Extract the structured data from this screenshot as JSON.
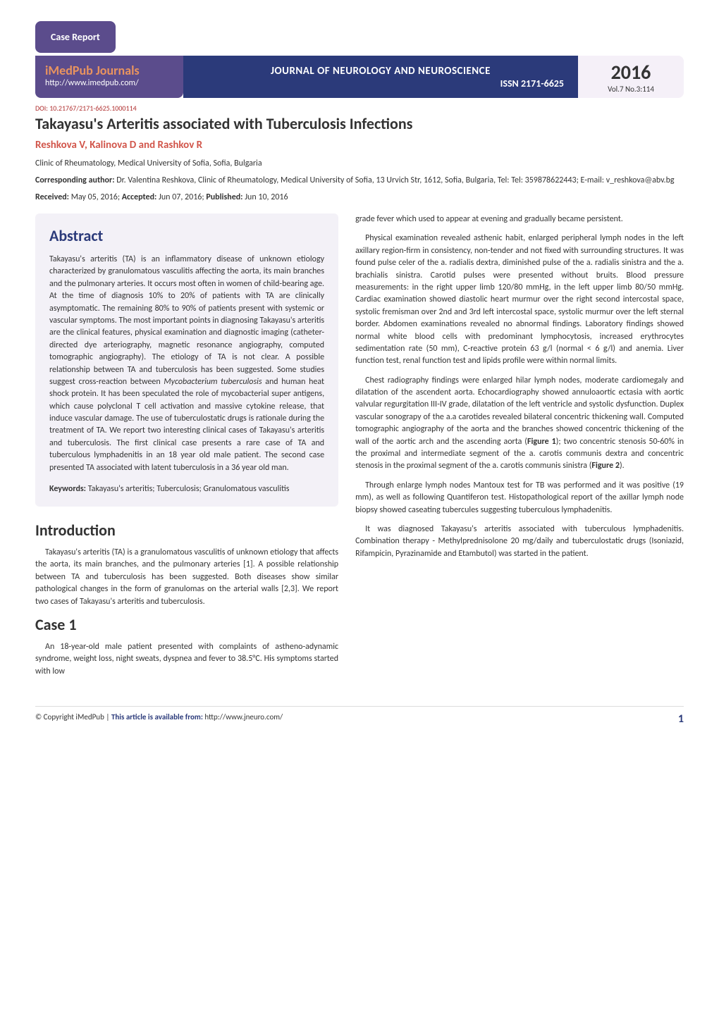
{
  "badge": "Case Report",
  "header": {
    "brand": "iMedPub Journals",
    "url": "http://www.imedpub.com/",
    "journal": "JOURNAL OF NEUROLOGY AND NEUROSCIENCE",
    "issn": "ISSN 2171-6625",
    "year": "2016",
    "volume": "Vol.7 No.3:114"
  },
  "doi": "DOI: 10.21767/2171-6625.1000114",
  "title": "Takayasu's Arteritis associated with Tuberculosis Infections",
  "authors": "Reshkova V, Kalinova D and Rashkov R",
  "affiliation": "Clinic of Rheumatology, Medical University of Sofia, Sofia, Bulgaria",
  "corresponding_label": "Corresponding author:",
  "corresponding_text": " Dr. Valentina Reshkova, Clinic of Rheumatology, Medical University of Sofia, 13 Urvich Str, 1612, Sofia, Bulgaria, Tel: Tel: 359878622443; E-mail: v_reshkova@abv.bg",
  "dates": {
    "received_label": "Received:",
    "received": " May 05, 2016; ",
    "accepted_label": "Accepted:",
    "accepted": " Jun 07, 2016; ",
    "published_label": "Published:",
    "published": " Jun 10, 2016"
  },
  "abstract_head": "Abstract",
  "abstract_p1": "Takayasu's arteritis (TA) is an inflammatory disease of unknown etiology characterized by granulomatous vasculitis affecting the aorta, its main branches and the pulmonary arteries. It occurs most often in women of child-bearing age. At the time of diagnosis 10% to 20% of patients with TA are clinically asymptomatic. The remaining 80% to 90% of patients present with systemic or vascular symptoms. The most important points in diagnosing Takayasu's arteritis are the clinical features, physical examination and diagnostic imaging (catheter-directed dye arteriography, magnetic resonance angiography, computed tomographic angiography). The etiology of TA is not clear. A possible relationship between TA and tuberculosis has been suggested. Some studies suggest cross-reaction between ",
  "abstract_italic": "Mycobacterium tuberculosis",
  "abstract_p1b": " and human heat shock protein. It has been speculated the role of mycobacterial super antigens, which cause polyclonal T cell activation and massive cytokine release, that induce vascular damage. The use of tuberculostatic drugs is rationale during the treatment of TA. We report two interesting clinical cases of Takayasu's arteritis and tuberculosis. The first clinical case presents a rare case of TA and tuberculous lymphadenitis in an 18 year old male patient. The second case presented TA associated with latent tuberculosis in a 36 year old man.",
  "keywords_label": "Keywords:",
  "keywords_text": " Takayasu's arteritis; Tuberculosis; Granulomatous vasculitis",
  "intro_head": "Introduction",
  "intro_p1": "Takayasu's arteritis (TA) is a granulomatous vasculitis of unknown etiology that affects the aorta, its main branches, and the pulmonary arteries [1]. A possible relationship between TA and tuberculosis has been suggested. Both diseases show similar pathological changes in the form of granulomas on the arterial walls [2,3]. We report two cases of Takayasu's arteritis and tuberculosis.",
  "case1_head": "Case 1",
  "case1_p1": "An 18-year-old male patient presented with complaints of astheno-adynamic syndrome, weight loss, night sweats, dyspnea and fever to 38.5°C. His symptoms started with low",
  "right_p1": "grade fever which used to appear at evening and gradually became persistent.",
  "right_p2": "Physical examination revealed asthenic habit, enlarged peripheral lymph nodes in the left axillary region-firm in consistency, non-tender and not fixed with surrounding structures. It was found pulse celer of the a. radialis dextra, diminished pulse of the a. radialis sinistra and the a. brachialis sinistra. Carotid pulses were presented without bruits. Blood pressure measurements: in the right upper limb 120/80 mmHg, in the left upper limb 80/50 mmHg. Cardiac examination showed diastolic heart murmur over the right second intercostal space, systolic fremisman over 2nd and 3rd left intercostal space, systolic murmur over the left sternal border. Abdomen examinations revealed no abnormal findings. Laboratory findings showed normal white blood cells with predominant lymphocytosis, increased erythrocytes sedimentation rate (50 mm), C-reactive protein 63 g/l (normal < 6 g/l) and anemia. Liver function test, renal function test and lipids profile were within normal limits.",
  "right_p3a": "Chest radiography findings were enlarged hilar lymph nodes, moderate cardiomegaly and dilatation of the ascendent aorta. Echocardiography showed annuloaortic ectasia with aortic valvular regurgitation III-IV grade, dilatation of the left ventricle and systolic dysfunction. Duplex vascular sonograpy of the a.a carotides revealed bilateral concentric thickening wall. Computed tomographic angiography of the aorta and the branches showed concentric thickening of the wall of the aortic arch and the ascending aorta (",
  "fig1": "Figure 1",
  "right_p3b": "); two concentric stenosis 50-60% in the proximal and intermediate segment of the a. carotis communis dextra and concentric stenosis in the proximal segment of the a. carotis communis sinistra (",
  "fig2": "Figure 2",
  "right_p3c": ").",
  "right_p4": "Through enlarge lymph nodes Mantoux test for TB was performed and it was positive (19 mm), as well as following Quantiferon test. Histopathological report of the axillar lymph node biopsy showed caseating tubercules suggesting tuberculous lymphadenitis.",
  "right_p5": "It was diagnosed Takayasu's arteritis associated with tuberculous lymphadenitis. Combination therapy - Methylprednisolone 20 mg/daily and tuberculostatic drugs (Isoniazid, Rifampicin, Pyrazinamide and Etambutol) was started in the patient.",
  "footer": {
    "copyright": "© Copyright iMedPub | ",
    "avail_label": "This article is available from: ",
    "avail_url": "http://www.jneuro.com/",
    "page": "1"
  },
  "colors": {
    "purple": "#5b4c8c",
    "navy": "#2b3a7a",
    "coral": "#d1554a",
    "lilac_bg": "#f3f1f7",
    "doi_red": "#b03030"
  }
}
